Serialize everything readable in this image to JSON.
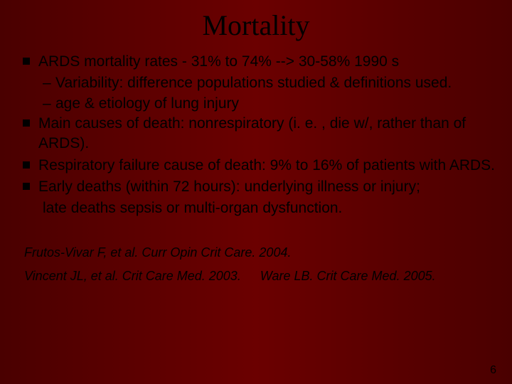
{
  "title": "Mortality",
  "colors": {
    "bg_left": "#4a0000",
    "bg_mid": "#6b0000",
    "bg_right": "#4a0000",
    "text": "#000000",
    "bullet": "#000000"
  },
  "typography": {
    "title_family": "Times New Roman",
    "title_size_pt": 40,
    "body_family": "Arial",
    "body_size_pt": 21,
    "ref_size_pt": 18,
    "ref_italic": true
  },
  "bullets": [
    {
      "text": "ARDS mortality rates - 31% to 74% --> 30-58% 1990 s",
      "subs": [
        "Variability: difference populations studied & definitions used.",
        "age & etiology of lung injury"
      ]
    },
    {
      "text": "Main causes of death: nonrespiratory  (i. e. , die w/, rather than of ARDS).",
      "subs": []
    },
    {
      "text": "Respiratory failure cause of death: 9% to 16% of patients with ARDS.",
      "subs": []
    },
    {
      "text": "Early deaths (within 72 hours): underlying illness or injury;",
      "subs": []
    }
  ],
  "continuation": "late deaths sepsis or multi-organ dysfunction.",
  "references": {
    "line1": "Frutos-Vivar F, et al. Curr Opin Crit Care. 2004.",
    "line2a": "Vincent JL, et al. Crit Care Med. 2003.",
    "line2b": "Ware LB. Crit Care Med. 2005."
  },
  "page_number": "6"
}
